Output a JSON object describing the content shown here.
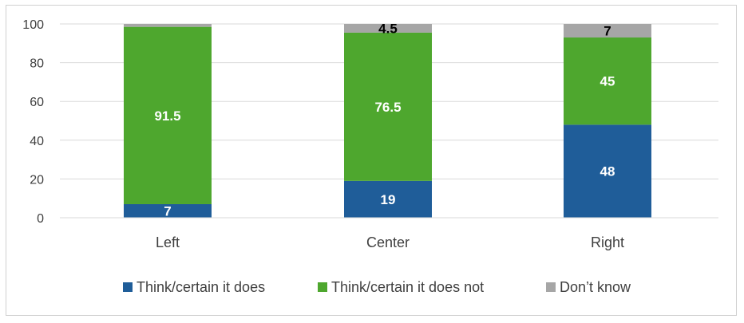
{
  "chart_data": {
    "type": "bar",
    "stacked": true,
    "categories": [
      "Left",
      "Center",
      "Right"
    ],
    "series": [
      {
        "name": "Think/certain it does",
        "values": [
          7,
          19,
          48
        ],
        "color": "#1f5d99",
        "label_color": "#ffffff"
      },
      {
        "name": "Think/certain it does not",
        "values": [
          91.5,
          76.5,
          45
        ],
        "color": "#4ea72e",
        "label_color": "#ffffff"
      },
      {
        "name": "Don’t know",
        "values": [
          1.5,
          4.5,
          7
        ],
        "color": "#a6a6a6",
        "label_color": "#000000"
      }
    ],
    "data_labels": [
      [
        "7",
        "19",
        "48"
      ],
      [
        "91.5",
        "76.5",
        "45"
      ],
      [
        "",
        "4.5",
        "7"
      ]
    ],
    "yticks": [
      "0",
      "20",
      "40",
      "60",
      "80",
      "100"
    ],
    "ylim": [
      0,
      100
    ],
    "grid": true,
    "legend_position": "bottom",
    "title": "",
    "xlabel": "",
    "ylabel": ""
  }
}
